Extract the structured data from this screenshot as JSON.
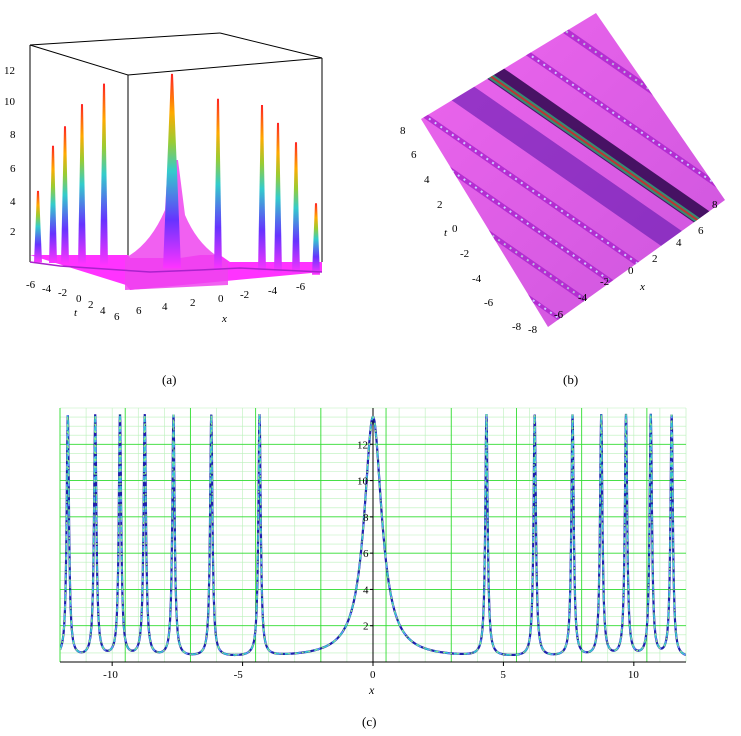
{
  "captions": {
    "a": "(a)",
    "b": "(b)",
    "c": "(c)"
  },
  "colors": {
    "magenta": "#ff33ff",
    "grid_green": "#33dd33",
    "dark_blue": "#1f1faa",
    "cyan": "#33cccc",
    "light_green": "#88ee88"
  },
  "chart_data": [
    {
      "panel": "a",
      "type": "surface3d",
      "title": "",
      "xlabel": "x",
      "ylabel": "t",
      "zlabel": "",
      "z_ticks": [
        "2",
        "4",
        "6",
        "8",
        "10",
        "12"
      ],
      "t_ticks": [
        "-6",
        "-4",
        "-2",
        "0",
        "2",
        "4",
        "6"
      ],
      "x_ticks": [
        "6",
        "4",
        "2",
        "0",
        "-2",
        "-4",
        "-6"
      ],
      "zlim": [
        0,
        13.5
      ],
      "peaks_z": [
        5.0,
        8.2,
        9.6,
        11.2,
        12.7,
        13.6,
        12.0,
        11.7,
        10.5,
        9.2,
        5.0
      ]
    },
    {
      "panel": "b",
      "type": "heatmap",
      "title": "",
      "xlabel": "x",
      "ylabel": "t",
      "t_ticks": [
        "8",
        "6",
        "4",
        "2",
        "0",
        "-2",
        "-4",
        "-6",
        "-8"
      ],
      "x_ticks": [
        "-8",
        "-6",
        "-4",
        "-2",
        "0",
        "2",
        "4",
        "6",
        "8"
      ],
      "xlim": [
        -8,
        8
      ],
      "ylim": [
        -8,
        8
      ]
    },
    {
      "panel": "c",
      "type": "line",
      "title": "",
      "xlabel": "x",
      "ylabel": "",
      "xlim": [
        -12,
        12
      ],
      "ylim": [
        0,
        14
      ],
      "grid": true,
      "x_ticks": [
        -10,
        -5,
        0,
        5,
        10
      ],
      "x_tick_labels": [
        "-10",
        "-5",
        "0",
        "5",
        "10"
      ],
      "y_ticks": [
        2,
        4,
        6,
        8,
        10,
        12
      ],
      "y_tick_labels": [
        "2",
        "4",
        "6",
        "8",
        "10",
        "12"
      ],
      "central_peak": {
        "x": 0,
        "y": 13.5
      },
      "baseline": 0.2,
      "spike_x": [
        -11.7,
        -10.65,
        -9.7,
        -8.75,
        -7.65,
        -6.2,
        -4.35,
        4.35,
        6.2,
        7.65,
        8.75,
        9.7,
        10.65,
        11.45
      ]
    }
  ]
}
